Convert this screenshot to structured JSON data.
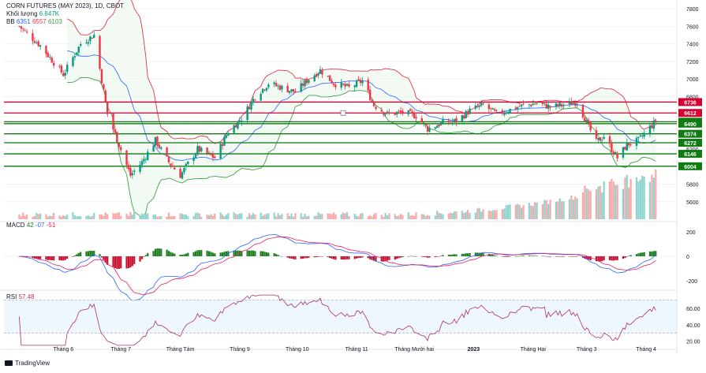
{
  "header": {
    "symbol": "CORN FUTURES (MAY 2023), 1D, CBOT",
    "volume_label": "Khối lượng",
    "volume_value": "6.847K",
    "bb_label": "BB",
    "bb_values": [
      "6351",
      "6557",
      "6103"
    ],
    "macd_label": "MACD",
    "macd_values": [
      "42",
      "-07",
      "-51"
    ],
    "rsi_label": "RSI",
    "rsi_value": "57.48"
  },
  "branding": "TradingView",
  "colors": {
    "up": "#089981",
    "down": "#f23645",
    "bb_upper": "#e0374b",
    "bb_lower": "#43a047",
    "bb_basis": "#2962ff",
    "level_red": "#d50032",
    "level_green": "#0f7b12",
    "rsi_line": "#b0306a",
    "vol_up": "#8fd3cf",
    "vol_down": "#f7a9a7",
    "macd_pos": "#1b7d1b",
    "macd_neg": "#c8102e",
    "macd_line": "#2962ff",
    "signal_line": "#e91e63"
  },
  "chart_data": [
    {
      "type": "candlestick",
      "title": "CORN FUTURES (MAY 2023), 1D, CBOT",
      "x": [
        "Tháng 6",
        "Tháng 7",
        "Tháng Tám",
        "Tháng 9",
        "Tháng 10",
        "Tháng 11",
        "Tháng Mười hai",
        "2023",
        "Tháng Hai",
        "Tháng 3",
        "Tháng 4"
      ],
      "ylim": [
        5400,
        7900
      ],
      "y_ticks": [
        5600,
        5800,
        6000,
        6200,
        6400,
        6600,
        6800,
        7000,
        7200,
        7400,
        7600,
        7800
      ],
      "horizontal_levels": [
        {
          "value": 6736,
          "label": "6736",
          "color": "red"
        },
        {
          "value": 6612,
          "label": "6612",
          "color": "red"
        },
        {
          "value": 6512,
          "label": "6512",
          "color": "green"
        },
        {
          "value": 6490,
          "label": "6490",
          "color": "green"
        },
        {
          "value": 6374,
          "label": "6374",
          "color": "green"
        },
        {
          "value": 6272,
          "label": "6272",
          "color": "green"
        },
        {
          "value": 6146,
          "label": "6146",
          "color": "green"
        },
        {
          "value": 6004,
          "label": "6004",
          "color": "green"
        }
      ],
      "close_anchors": [
        {
          "date": "2022-05-09",
          "value": 7600
        },
        {
          "date": "2022-05-20",
          "value": 7380
        },
        {
          "date": "2022-06-01",
          "value": 7050
        },
        {
          "date": "2022-06-10",
          "value": 7400
        },
        {
          "date": "2022-06-17",
          "value": 7500
        },
        {
          "date": "2022-06-24",
          "value": 6600
        },
        {
          "date": "2022-07-06",
          "value": 5900
        },
        {
          "date": "2022-07-12",
          "value": 6050
        },
        {
          "date": "2022-07-19",
          "value": 6300
        },
        {
          "date": "2022-07-26",
          "value": 6050
        },
        {
          "date": "2022-08-01",
          "value": 5900
        },
        {
          "date": "2022-08-10",
          "value": 6200
        },
        {
          "date": "2022-08-19",
          "value": 6100
        },
        {
          "date": "2022-08-26",
          "value": 6400
        },
        {
          "date": "2022-09-02",
          "value": 6550
        },
        {
          "date": "2022-09-09",
          "value": 6800
        },
        {
          "date": "2022-09-16",
          "value": 6950
        },
        {
          "date": "2022-09-23",
          "value": 6900
        },
        {
          "date": "2022-09-30",
          "value": 6850
        },
        {
          "date": "2022-10-07",
          "value": 7000
        },
        {
          "date": "2022-10-13",
          "value": 7100
        },
        {
          "date": "2022-10-20",
          "value": 6950
        },
        {
          "date": "2022-10-28",
          "value": 6900
        },
        {
          "date": "2022-11-04",
          "value": 6980
        },
        {
          "date": "2022-11-10",
          "value": 6700
        },
        {
          "date": "2022-11-17",
          "value": 6600
        },
        {
          "date": "2022-11-25",
          "value": 6620
        },
        {
          "date": "2022-12-02",
          "value": 6580
        },
        {
          "date": "2022-12-08",
          "value": 6430
        },
        {
          "date": "2022-12-16",
          "value": 6500
        },
        {
          "date": "2022-12-23",
          "value": 6520
        },
        {
          "date": "2022-12-30",
          "value": 6640
        },
        {
          "date": "2023-01-06",
          "value": 6700
        },
        {
          "date": "2023-01-13",
          "value": 6600
        },
        {
          "date": "2023-01-20",
          "value": 6650
        },
        {
          "date": "2023-01-27",
          "value": 6700
        },
        {
          "date": "2023-02-03",
          "value": 6720
        },
        {
          "date": "2023-02-10",
          "value": 6680
        },
        {
          "date": "2023-02-17",
          "value": 6700
        },
        {
          "date": "2023-02-24",
          "value": 6740
        },
        {
          "date": "2023-03-01",
          "value": 6500
        },
        {
          "date": "2023-03-06",
          "value": 6280
        },
        {
          "date": "2023-03-10",
          "value": 6350
        },
        {
          "date": "2023-03-14",
          "value": 6200
        },
        {
          "date": "2023-03-17",
          "value": 6100
        },
        {
          "date": "2023-03-22",
          "value": 6250
        },
        {
          "date": "2023-03-28",
          "value": 6300
        },
        {
          "date": "2023-04-03",
          "value": 6450
        },
        {
          "date": "2023-04-06",
          "value": 6512
        }
      ]
    },
    {
      "type": "bar",
      "title": "Khối lượng",
      "last_value": "6.847K"
    },
    {
      "type": "line",
      "title": "MACD",
      "values_shown": [
        "42",
        "-07",
        "-51"
      ],
      "y_ticks": [
        200,
        0,
        -200
      ],
      "ylim": [
        -260,
        260
      ]
    },
    {
      "type": "line",
      "title": "RSI",
      "last_value": 57.48,
      "y_ticks": [
        60,
        40,
        20
      ],
      "ylim": [
        13,
        78
      ],
      "bands": [
        70,
        30
      ]
    }
  ]
}
